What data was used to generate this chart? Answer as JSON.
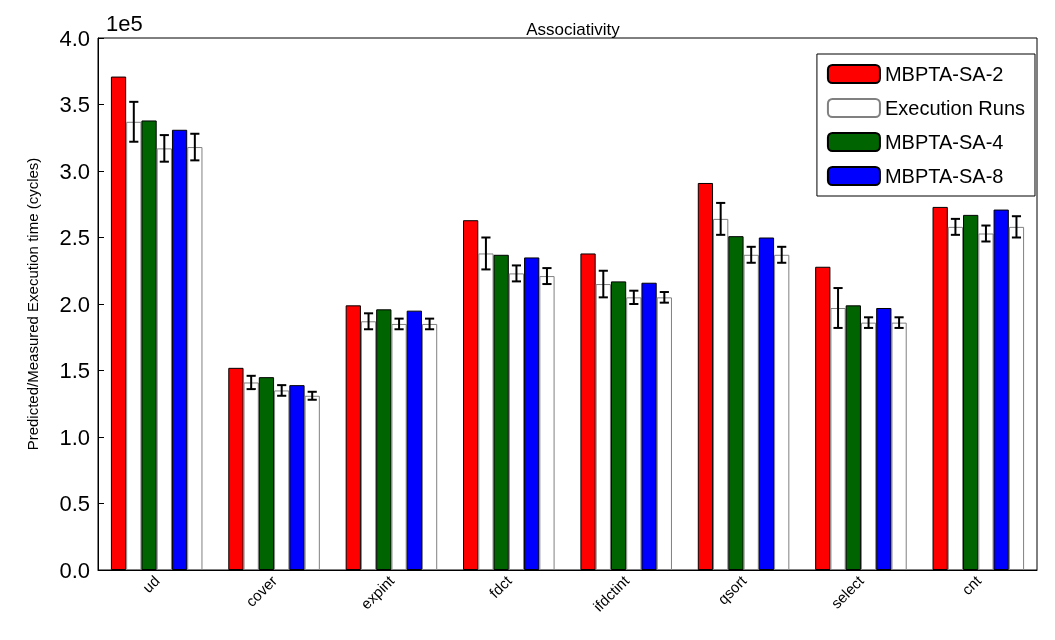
{
  "chart_data": {
    "type": "bar",
    "title": "Associativity",
    "ylabel": "Predicted/Measured Execution time (cycles)",
    "annotations": [
      "1e5"
    ],
    "categories": [
      "ud",
      "cover",
      "expint",
      "fdct",
      "ifdctint",
      "qsort",
      "select",
      "cnt"
    ],
    "series": [
      {
        "name": "MBPTA-SA-2",
        "color": "#ff0000",
        "values": [
          3.71,
          1.52,
          1.99,
          2.63,
          2.38,
          2.91,
          2.28,
          2.73
        ]
      },
      {
        "name": "Execution Runs",
        "color": "#ffffff",
        "values": [
          3.37,
          1.41,
          1.87,
          2.38,
          2.15,
          2.64,
          1.97,
          2.58
        ],
        "errors": [
          0.15,
          0.05,
          0.06,
          0.12,
          0.1,
          0.12,
          0.15,
          0.06
        ]
      },
      {
        "name": "MBPTA-SA-4",
        "color": "#006400",
        "values": [
          3.38,
          1.45,
          1.96,
          2.37,
          2.17,
          2.51,
          1.99,
          2.67
        ]
      },
      {
        "color": "#ffffff",
        "values": [
          3.17,
          1.35,
          1.85,
          2.23,
          2.05,
          2.37,
          1.86,
          2.53
        ],
        "errors": [
          0.1,
          0.04,
          0.04,
          0.06,
          0.05,
          0.06,
          0.04,
          0.06
        ]
      },
      {
        "name": "MBPTA-SA-8",
        "color": "#0000ff",
        "values": [
          3.31,
          1.39,
          1.95,
          2.35,
          2.16,
          2.5,
          1.97,
          2.71
        ]
      },
      {
        "color": "#ffffff",
        "values": [
          3.18,
          1.31,
          1.85,
          2.21,
          2.05,
          2.37,
          1.86,
          2.58
        ],
        "errors": [
          0.1,
          0.03,
          0.04,
          0.06,
          0.04,
          0.06,
          0.04,
          0.08
        ]
      }
    ],
    "ylim": [
      0,
      4
    ],
    "yticks": [
      {
        "value": 0,
        "label": "0.0"
      },
      {
        "value": 0.5,
        "label": "0.5"
      },
      {
        "value": 1,
        "label": "1.0"
      },
      {
        "value": 1.5,
        "label": "1.5"
      },
      {
        "value": 2,
        "label": "2.0"
      },
      {
        "value": 2.5,
        "label": "2.5"
      },
      {
        "value": 3,
        "label": "3.0"
      },
      {
        "value": 3.5,
        "label": "3.5"
      },
      {
        "value": 4,
        "label": "4.0"
      }
    ],
    "legend": "top right"
  }
}
